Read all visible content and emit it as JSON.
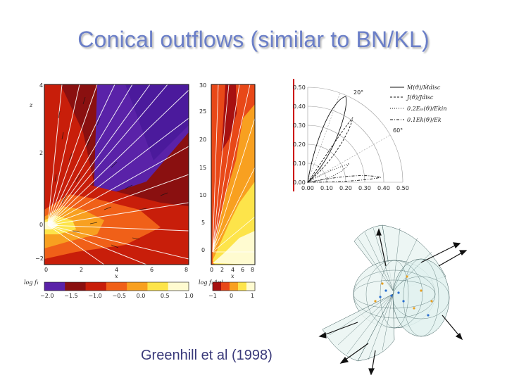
{
  "slide": {
    "title": "Conical outflows (similar to BN/KL)",
    "credit": "Greenhill et al (1998)"
  },
  "left_panel": {
    "y_ticks": [
      "4",
      "2",
      "0",
      "−2"
    ],
    "y_top_tick": "4",
    "x_ticks": [
      "0",
      "2",
      "4",
      "6",
      "8"
    ],
    "x_label": "x",
    "y_label": "z"
  },
  "middle_panel": {
    "y_ticks": [
      "30",
      "25",
      "20",
      "15",
      "10",
      "5",
      "0"
    ],
    "x_ticks": [
      "0",
      "2",
      "4",
      "6",
      "8"
    ],
    "x_label": "x"
  },
  "colorbar_left": {
    "label": "log  f₁",
    "ticks": [
      "−2.0",
      "−1.5",
      "−1.0",
      "−0.5",
      "0.0",
      "0.5",
      "1.0"
    ],
    "colors": [
      "#5a22a8",
      "#8a1010",
      "#c81e0a",
      "#f06018",
      "#f8a020",
      "#fde44a",
      "#fffbd0"
    ]
  },
  "colorbar_mid": {
    "label": "log  f₂/|φ|",
    "ticks": [
      "−1",
      "0",
      "1"
    ],
    "colors": [
      "#a61010",
      "#e84818",
      "#f8a020",
      "#fde44a",
      "#fffbd0"
    ]
  },
  "polar": {
    "r_ticks": [
      "0.50",
      "0.40",
      "0.30",
      "0.20",
      "0.10",
      "0.00"
    ],
    "x_ticks": [
      "0.00",
      "0.10",
      "0.20",
      "0.30",
      "0.40",
      "0.50"
    ],
    "angle_labels": [
      "20°",
      "60°"
    ],
    "legend": [
      "Ṁ(ϑ)/Ṁdisc",
      "J(ϑ)/Jdisc",
      "0.2Eᵢₙ(ϑ)/Ekin",
      "0.1Ek(ϑ)/Ek"
    ]
  }
}
